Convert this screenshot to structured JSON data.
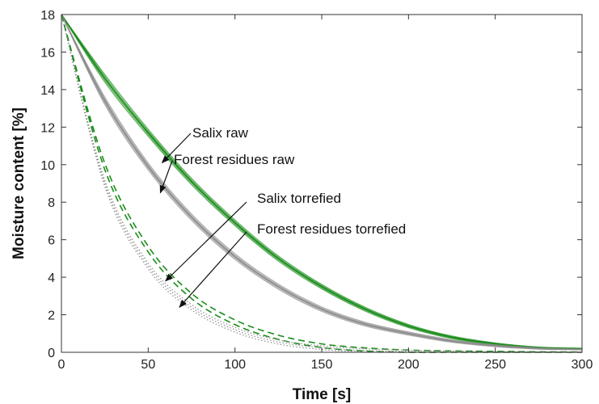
{
  "chart_data": {
    "type": "line",
    "title": "",
    "xlabel": "Time [s]",
    "ylabel": "Moisture content [%]",
    "xlim": [
      0,
      300
    ],
    "ylim": [
      0,
      18
    ],
    "xticks": [
      0,
      50,
      100,
      150,
      200,
      250,
      300
    ],
    "yticks": [
      0,
      2,
      4,
      6,
      8,
      10,
      12,
      14,
      16,
      18
    ],
    "grid": false,
    "legend": "none",
    "x": [
      0,
      25,
      50,
      75,
      100,
      125,
      150,
      175,
      200,
      225,
      250,
      275,
      300
    ],
    "series": [
      {
        "name": "Salix raw",
        "color": "#1a8c1a",
        "style": "solid-band",
        "values": [
          18,
          14.6,
          11.7,
          9.1,
          6.9,
          5.0,
          3.5,
          2.3,
          1.4,
          0.8,
          0.45,
          0.25,
          0.2
        ]
      },
      {
        "name": "Forest residues raw",
        "color": "#8c8c8c",
        "style": "solid-band",
        "values": [
          18,
          13.4,
          9.9,
          7.2,
          5.1,
          3.5,
          2.3,
          1.5,
          1.0,
          0.6,
          0.35,
          0.2,
          0.15
        ]
      },
      {
        "name": "Salix torrefied",
        "color": "#1a8c1a",
        "style": "dashed",
        "values": [
          18,
          9.9,
          5.5,
          3.0,
          1.6,
          0.8,
          0.35,
          0.15,
          0.05,
          0.02,
          0.01,
          0.0,
          0.0
        ]
      },
      {
        "name": "Forest residues torrefied",
        "color": "#8c8c8c",
        "style": "dotted",
        "values": [
          18,
          9.0,
          4.6,
          2.4,
          1.2,
          0.55,
          0.25,
          0.1,
          0.04,
          0.01,
          0.0,
          0.0,
          0.0
        ]
      }
    ],
    "annotations": [
      {
        "text": "Salix raw",
        "points_to": {
          "x": 58,
          "y": 10.1
        }
      },
      {
        "text": "Forest residues raw",
        "points_to": {
          "x": 57,
          "y": 8.5
        }
      },
      {
        "text": "Salix torrefied",
        "points_to": {
          "x": 60,
          "y": 3.8
        }
      },
      {
        "text": "Forest residues torrefied",
        "points_to": {
          "x": 68,
          "y": 2.4
        }
      }
    ]
  }
}
